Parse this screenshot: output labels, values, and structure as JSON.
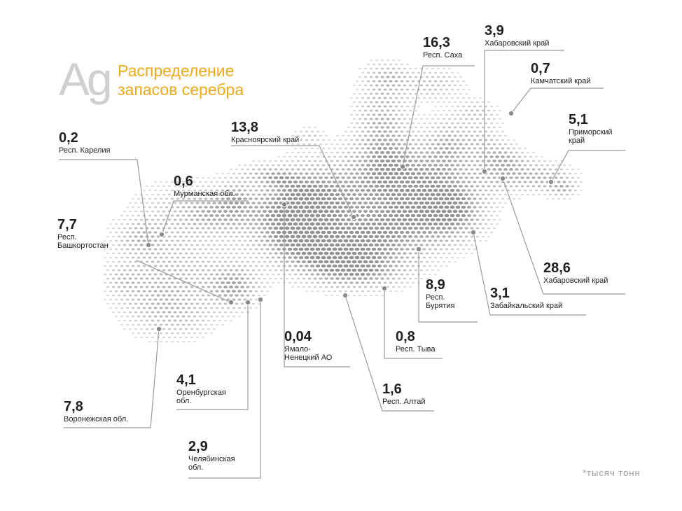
{
  "header": {
    "symbol": "Ag",
    "title_lines": [
      "Распределение",
      "запасов серебра"
    ]
  },
  "footnote": "*тысяч тонн",
  "colors": {
    "title": "#f2a915",
    "symbol": "#cfcfcf",
    "dots": "#8c8c8c",
    "marker": "#8a8a8a",
    "leader": "#9a9a9a"
  },
  "regions": [
    {
      "id": "karelia",
      "value": "0,2",
      "name_lines": [
        "Респ. Карелия"
      ]
    },
    {
      "id": "murmansk",
      "value": "0,6",
      "name_lines": [
        "Мурманская обл."
      ]
    },
    {
      "id": "bashkortostan",
      "value": "7,7",
      "name_lines": [
        "Респ.",
        "Башкортостан"
      ]
    },
    {
      "id": "voronezh",
      "value": "7,8",
      "name_lines": [
        "Воронежская обл."
      ]
    },
    {
      "id": "orenburg",
      "value": "4,1",
      "name_lines": [
        "Оренбургская",
        "обл."
      ]
    },
    {
      "id": "chelyabinsk",
      "value": "2,9",
      "name_lines": [
        "Челябинская",
        "обл."
      ]
    },
    {
      "id": "yamal",
      "value": "0,04",
      "name_lines": [
        "Ямало-",
        "Ненецкий АО"
      ]
    },
    {
      "id": "krasnoyarsk",
      "value": "13,8",
      "name_lines": [
        "Красноярский  край"
      ]
    },
    {
      "id": "altai",
      "value": "1,6",
      "name_lines": [
        "Респ. Алтай"
      ]
    },
    {
      "id": "tyva",
      "value": "0,8",
      "name_lines": [
        "Респ. Тыва"
      ]
    },
    {
      "id": "buryatia",
      "value": "8,9",
      "name_lines": [
        "Респ.",
        "Бурятия"
      ]
    },
    {
      "id": "zabaikalsky",
      "value": "3,1",
      "name_lines": [
        "Забайкальский край"
      ]
    },
    {
      "id": "khabarovsk-south",
      "value": "28,6",
      "name_lines": [
        "Хабаровский край"
      ]
    },
    {
      "id": "sakha",
      "value": "16,3",
      "name_lines": [
        "Респ. Саха"
      ]
    },
    {
      "id": "khabarovsk-north",
      "value": "3,9",
      "name_lines": [
        "Хабаровский край"
      ]
    },
    {
      "id": "kamchatka",
      "value": "0,7",
      "name_lines": [
        "Камчатский край"
      ]
    },
    {
      "id": "primorsky",
      "value": "5,1",
      "name_lines": [
        "Приморский",
        "край"
      ]
    }
  ]
}
